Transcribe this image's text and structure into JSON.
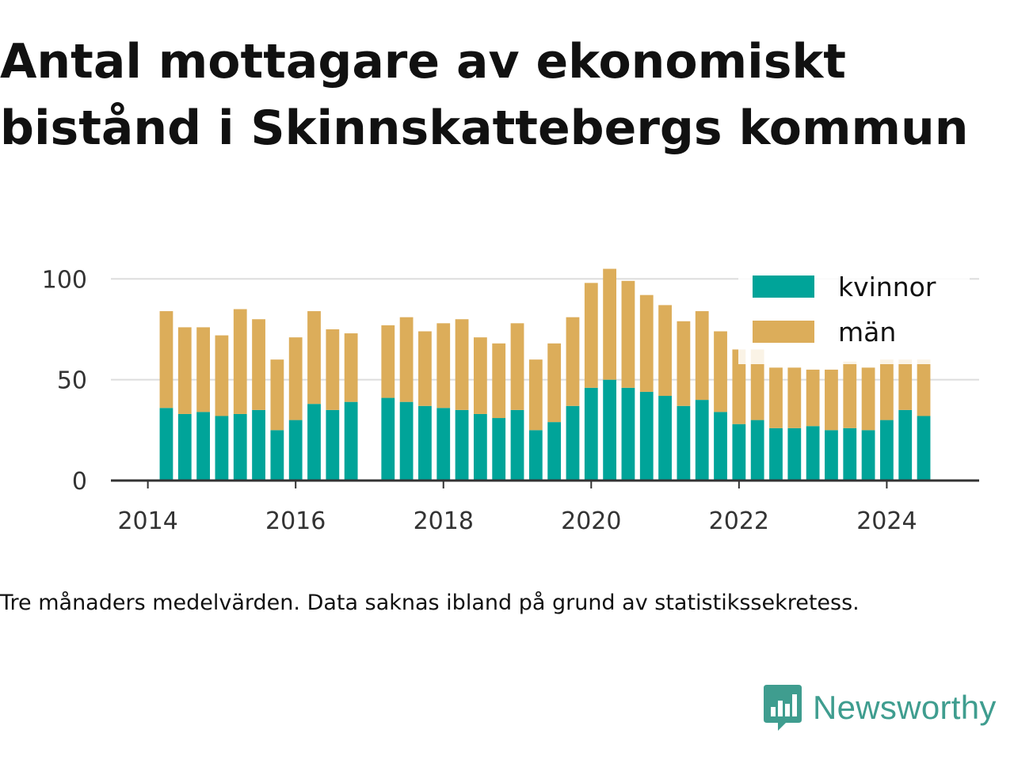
{
  "title": "Antal mottagare av ekonomiskt bistånd i Skinnskattebergs kommun",
  "caption": "Tre månaders medelvärden. Data saknas ibland på grund av statistikssekretess.",
  "brand": {
    "name": "Newsworthy",
    "icon": "newsworthy-logo-icon",
    "color": "#3f9d8f"
  },
  "chart_data": {
    "type": "bar",
    "stacked": true,
    "x_ticks": [
      "2014",
      "2016",
      "2018",
      "2020",
      "2022",
      "2024"
    ],
    "x_range": [
      2013.5,
      2025.25
    ],
    "y_ticks": [
      "0",
      "50",
      "100"
    ],
    "ylim": [
      0,
      106
    ],
    "grid": true,
    "legend_position": "top-right",
    "x": [
      2014.25,
      2014.5,
      2014.75,
      2015.0,
      2015.25,
      2015.5,
      2015.75,
      2016.0,
      2016.25,
      2016.5,
      2016.75,
      2017.25,
      2017.5,
      2017.75,
      2018.0,
      2018.25,
      2018.5,
      2018.75,
      2019.0,
      2019.25,
      2019.5,
      2019.75,
      2020.0,
      2020.25,
      2020.5,
      2020.75,
      2021.0,
      2021.25,
      2021.5,
      2021.75,
      2022.0,
      2022.25,
      2022.5,
      2022.75,
      2023.0,
      2023.25,
      2023.5,
      2023.75,
      2024.0,
      2024.25,
      2024.5
    ],
    "series": [
      {
        "name": "kvinnor",
        "color": "#00a499",
        "values": [
          36,
          33,
          34,
          32,
          33,
          35,
          25,
          30,
          38,
          35,
          39,
          41,
          39,
          37,
          36,
          35,
          33,
          31,
          35,
          25,
          29,
          37,
          46,
          50,
          46,
          44,
          42,
          37,
          40,
          34,
          28,
          30,
          26,
          26,
          27,
          25,
          26,
          25,
          30,
          35,
          32
        ]
      },
      {
        "name": "män",
        "color": "#dcad5a",
        "values": [
          48,
          43,
          42,
          40,
          52,
          45,
          35,
          41,
          46,
          40,
          34,
          36,
          42,
          37,
          42,
          45,
          38,
          37,
          43,
          35,
          39,
          44,
          52,
          55,
          53,
          48,
          45,
          42,
          44,
          40,
          37,
          35,
          30,
          30,
          28,
          30,
          33,
          31,
          30,
          25,
          28
        ]
      }
    ]
  }
}
